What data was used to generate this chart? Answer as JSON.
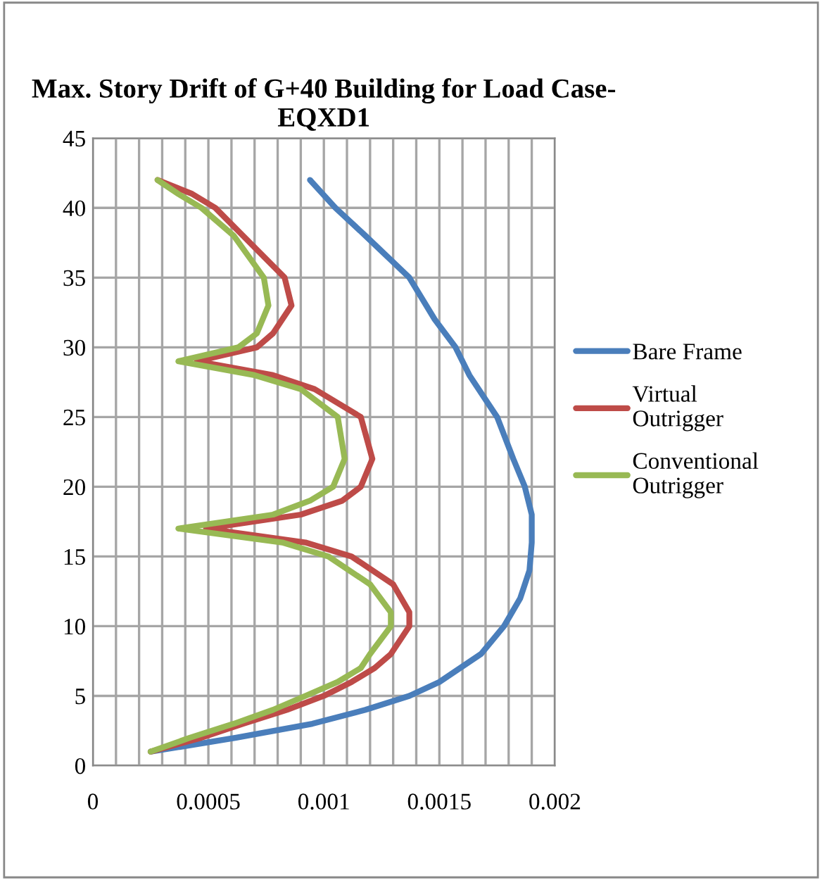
{
  "chart_data": {
    "type": "line",
    "title": "Max. Story Drift of G+40 Building for Load Case- EQXD1",
    "xlim": [
      0,
      0.002
    ],
    "ylim": [
      0,
      45
    ],
    "xticks": [
      0,
      {
        "value": 0.0001,
        "label": null
      },
      {
        "value": 0.0002,
        "label": null
      },
      {
        "value": 0.0003,
        "label": null
      },
      {
        "value": 0.0004,
        "label": null
      },
      0.0005,
      {
        "value": 0.0006,
        "label": null
      },
      {
        "value": 0.0007,
        "label": null
      },
      {
        "value": 0.0008,
        "label": null
      },
      {
        "value": 0.0009,
        "label": null
      },
      0.001,
      {
        "value": 0.0011,
        "label": null
      },
      {
        "value": 0.0012,
        "label": null
      },
      {
        "value": 0.0013,
        "label": null
      },
      {
        "value": 0.0014,
        "label": null
      },
      0.0015,
      {
        "value": 0.0016,
        "label": null
      },
      {
        "value": 0.0017,
        "label": null
      },
      {
        "value": 0.0018,
        "label": null
      },
      {
        "value": 0.0019,
        "label": null
      },
      0.002
    ],
    "yticks": [
      0,
      5,
      10,
      15,
      20,
      25,
      30,
      35,
      40,
      45
    ],
    "grid": true,
    "legend": "right",
    "marker": "none",
    "line_style": "solid",
    "series": [
      {
        "name": "Bare Frame",
        "color": "#4a7ebb",
        "x": [
          0.00025,
          0.00062,
          0.00095,
          0.00118,
          0.00137,
          0.0015,
          0.00168,
          0.00178,
          0.00185,
          0.00189,
          0.0019,
          0.0019,
          0.00187,
          0.00182,
          0.00175,
          0.00163,
          0.00157,
          0.00148,
          0.00137,
          0.00118,
          0.00105,
          0.00094
        ],
        "values": [
          1,
          2,
          3,
          4,
          5,
          6,
          8,
          10,
          12,
          14,
          16,
          18,
          20,
          22,
          25,
          28,
          30,
          32,
          35,
          38,
          40,
          42
        ]
      },
      {
        "name": "Virtual Outrigger",
        "color": "#be4b48",
        "x": [
          0.00025,
          0.00047,
          0.00065,
          0.00084,
          0.001,
          0.00112,
          0.00122,
          0.00129,
          0.00137,
          0.00137,
          0.0013,
          0.00112,
          0.00092,
          0.00049,
          0.0009,
          0.00108,
          0.00116,
          0.00121,
          0.00116,
          0.00096,
          0.00078,
          0.00045,
          0.00071,
          0.00078,
          0.00086,
          0.00083,
          0.00065,
          0.00053,
          0.00043,
          0.00028
        ],
        "values": [
          1,
          2,
          3,
          4,
          5,
          6,
          7,
          8,
          10,
          11,
          13,
          15,
          16,
          17,
          18,
          19,
          20,
          22,
          25,
          27,
          28,
          29,
          30,
          31,
          33,
          35,
          38,
          40,
          41,
          42
        ]
      },
      {
        "name": "Conventional Outrigger",
        "color": "#98b954",
        "x": [
          0.00025,
          0.00042,
          0.00061,
          0.00078,
          0.00092,
          0.00106,
          0.00116,
          0.0012,
          0.00129,
          0.00129,
          0.0012,
          0.00102,
          0.00082,
          0.00037,
          0.00078,
          0.00094,
          0.00104,
          0.00109,
          0.00106,
          0.0009,
          0.0007,
          0.00037,
          0.00063,
          0.00071,
          0.00076,
          0.00074,
          0.00061,
          0.00047,
          0.00037,
          0.00028
        ],
        "values": [
          1,
          2,
          3,
          4,
          5,
          6,
          7,
          8,
          10,
          11,
          13,
          15,
          16,
          17,
          18,
          19,
          20,
          22,
          25,
          27,
          28,
          29,
          30,
          31,
          33,
          35,
          38,
          40,
          41,
          42
        ]
      }
    ]
  }
}
